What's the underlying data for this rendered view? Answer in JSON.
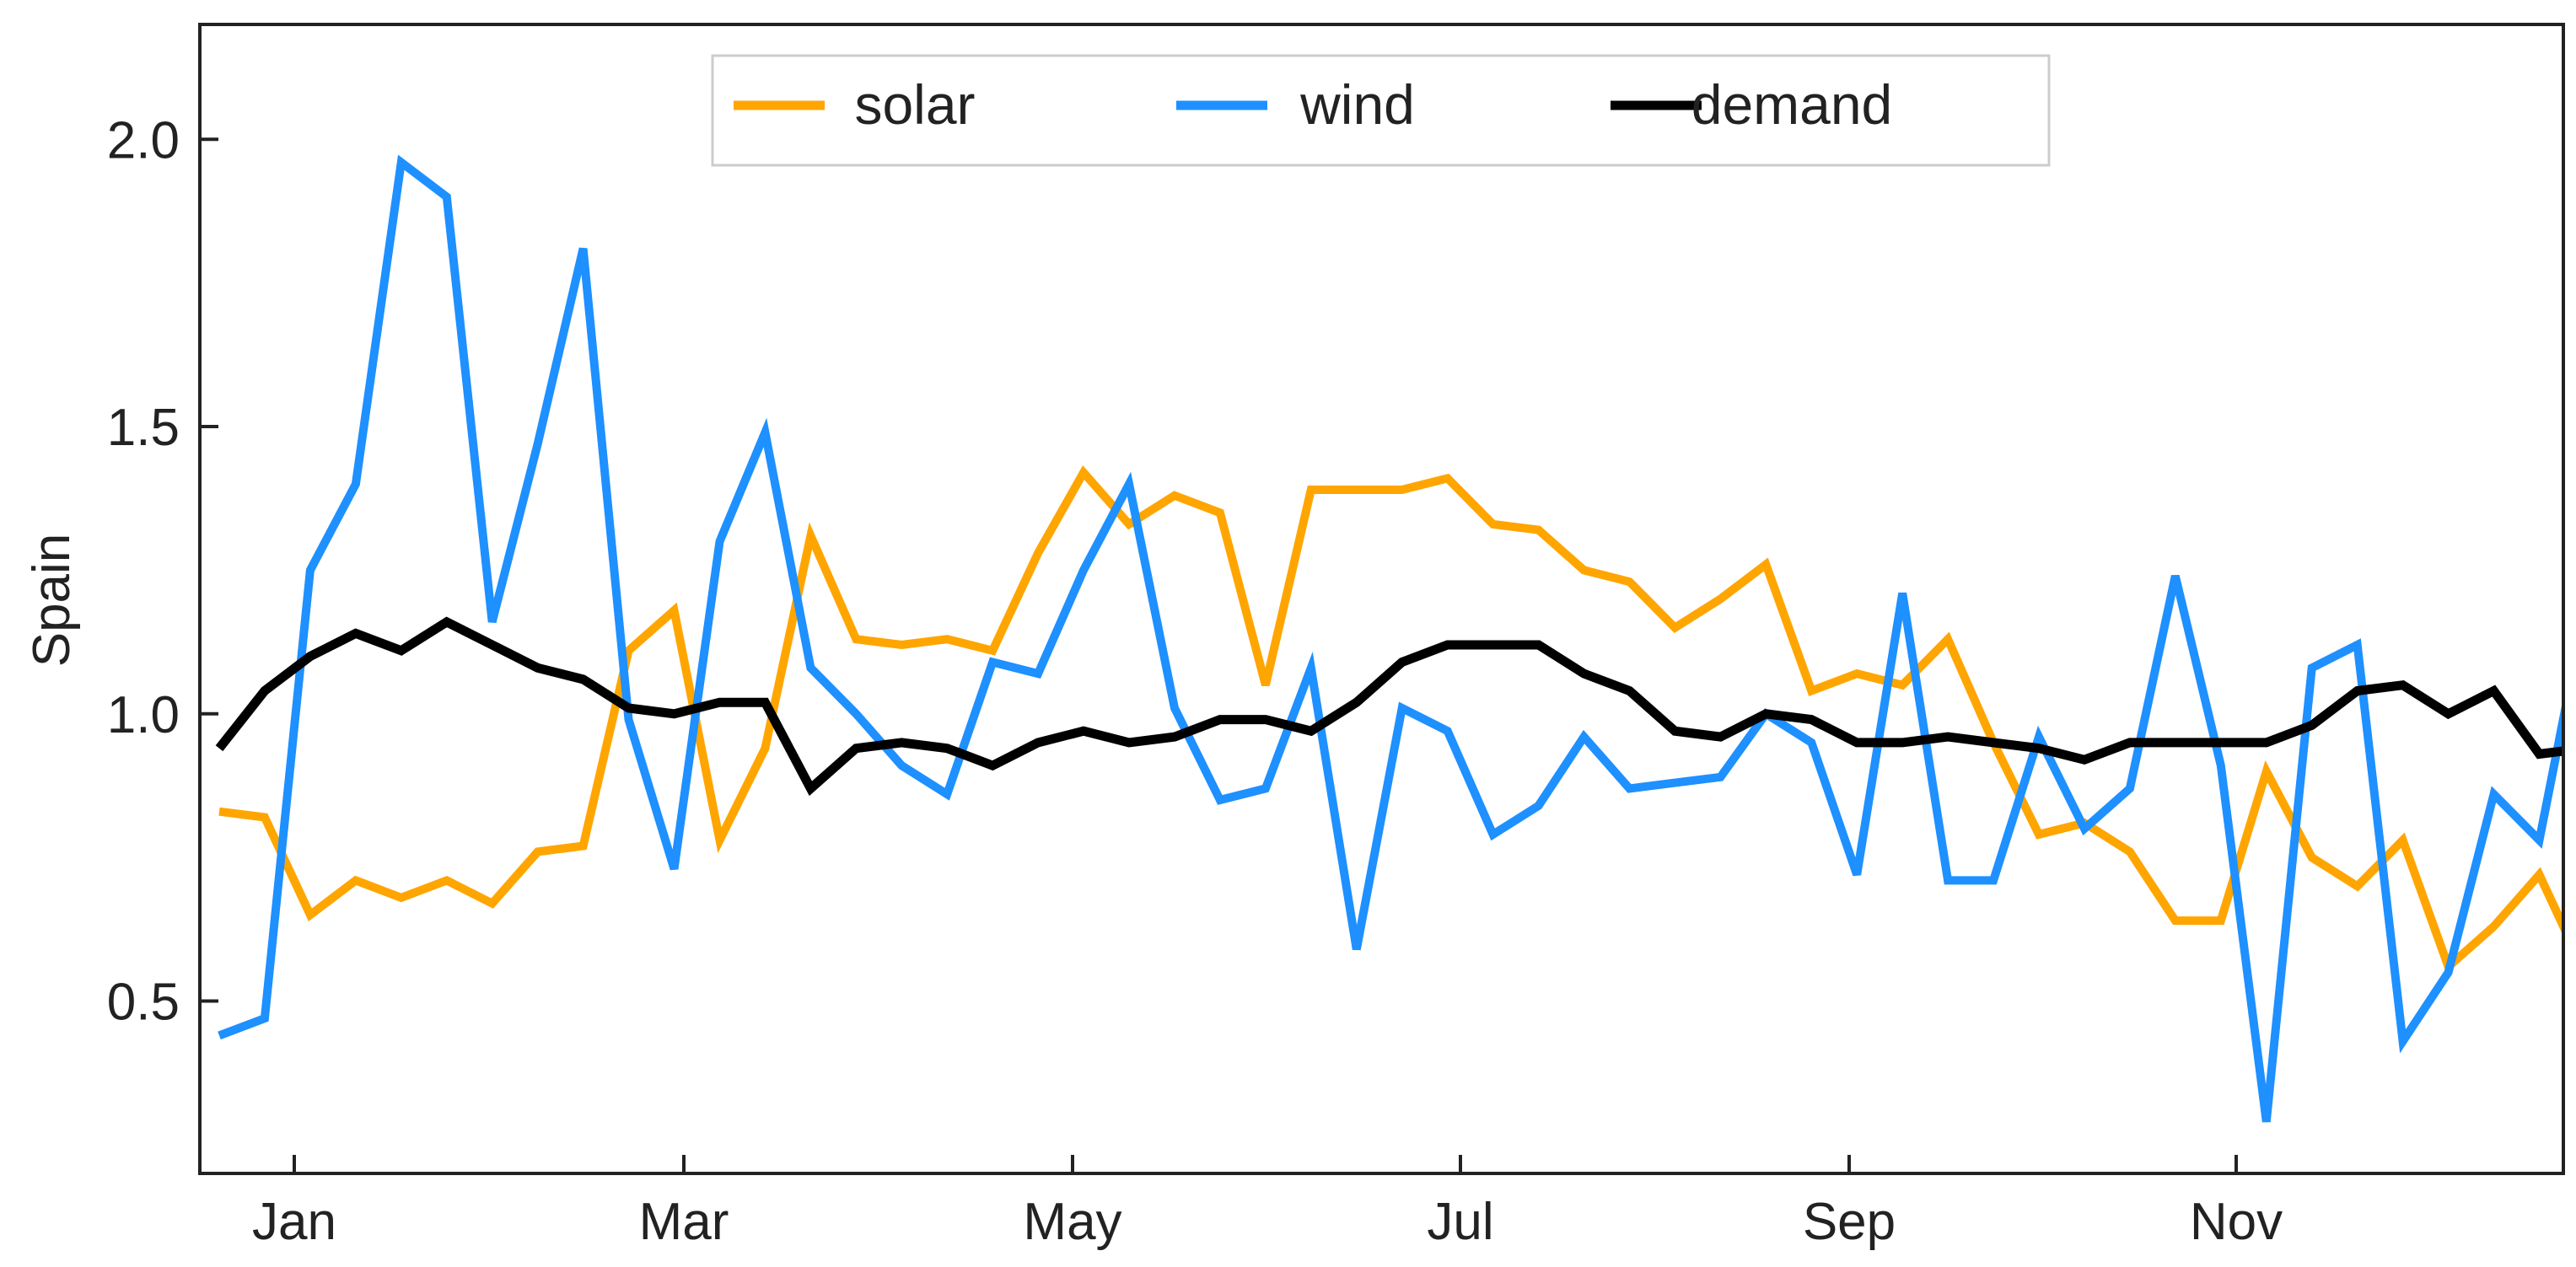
{
  "chart_data": {
    "type": "line",
    "title": "",
    "xlabel": "",
    "ylabel": "Spain",
    "x_ticks": [
      "Jan",
      "Mar",
      "May",
      "Jul",
      "Sep",
      "Nov"
    ],
    "y_ticks": [
      "0.5",
      "1.0",
      "1.5",
      "2.0"
    ],
    "ylim": [
      0.2,
      2.2
    ],
    "grid": false,
    "legend_position": "top-center",
    "series": [
      {
        "name": "solar",
        "color": "#FFA500",
        "values": [
          0.83,
          0.82,
          0.65,
          0.71,
          0.68,
          0.71,
          0.67,
          0.76,
          0.77,
          1.11,
          1.18,
          0.78,
          0.94,
          1.31,
          1.13,
          1.12,
          1.13,
          1.11,
          1.28,
          1.42,
          1.33,
          1.38,
          1.35,
          1.05,
          1.39,
          1.39,
          1.39,
          1.41,
          1.33,
          1.32,
          1.25,
          1.23,
          1.15,
          1.2,
          1.26,
          1.04,
          1.07,
          1.05,
          1.13,
          0.95,
          0.79,
          0.81,
          0.76,
          0.64,
          0.64,
          0.9,
          0.75,
          0.7,
          0.78,
          0.56,
          0.63,
          0.72,
          0.55
        ]
      },
      {
        "name": "wind",
        "color": "#1E90FF",
        "values": [
          0.44,
          0.47,
          1.25,
          1.4,
          1.96,
          1.9,
          1.16,
          1.47,
          1.81,
          0.99,
          0.73,
          1.3,
          1.49,
          1.08,
          1.0,
          0.91,
          0.86,
          1.09,
          1.07,
          1.25,
          1.4,
          1.01,
          0.85,
          0.87,
          1.08,
          0.59,
          1.01,
          0.97,
          0.79,
          0.84,
          0.96,
          0.87,
          0.88,
          0.89,
          1.0,
          0.95,
          0.72,
          1.21,
          0.71,
          0.71,
          0.96,
          0.8,
          0.87,
          1.24,
          0.91,
          0.29,
          1.08,
          1.12,
          0.43,
          0.55,
          0.86,
          0.78,
          1.18
        ]
      },
      {
        "name": "demand",
        "color": "#000000",
        "values": [
          0.94,
          1.04,
          1.1,
          1.14,
          1.11,
          1.16,
          1.12,
          1.08,
          1.06,
          1.01,
          1.0,
          1.02,
          1.02,
          0.87,
          0.94,
          0.95,
          0.94,
          0.91,
          0.95,
          0.97,
          0.95,
          0.96,
          0.99,
          0.99,
          0.97,
          1.02,
          1.09,
          1.12,
          1.12,
          1.12,
          1.07,
          1.04,
          0.97,
          0.96,
          1.0,
          0.99,
          0.95,
          0.95,
          0.96,
          0.95,
          0.94,
          0.92,
          0.95,
          0.95,
          0.95,
          0.95,
          0.98,
          1.04,
          1.05,
          1.0,
          1.04,
          0.93,
          0.94
        ]
      }
    ]
  }
}
